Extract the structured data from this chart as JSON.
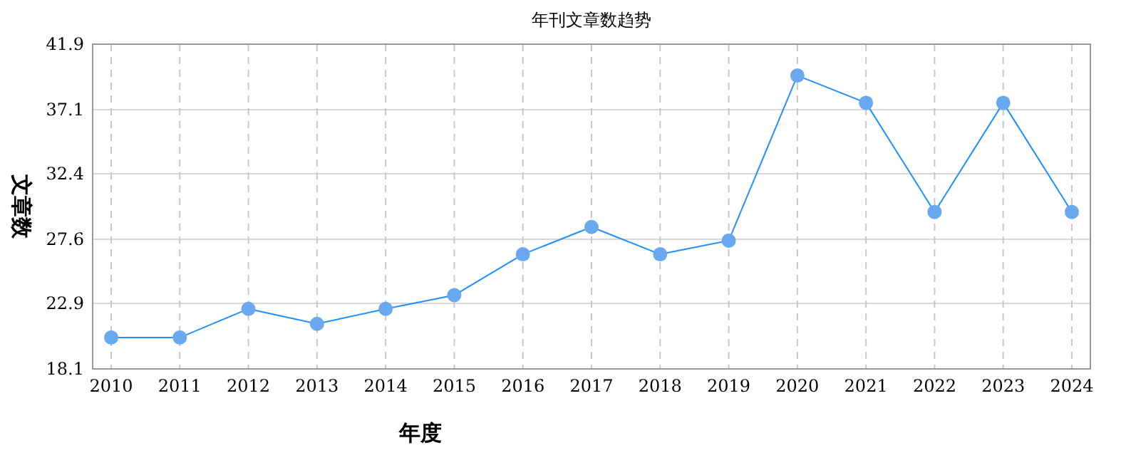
{
  "chart_data": {
    "type": "line",
    "title": "年刊文章数趋势",
    "xlabel": "年度",
    "ylabel": "文章数",
    "categories": [
      "2010",
      "2011",
      "2012",
      "2013",
      "2014",
      "2015",
      "2016",
      "2017",
      "2018",
      "2019",
      "2020",
      "2021",
      "2022",
      "2023",
      "2024"
    ],
    "series": [
      {
        "color": "#1e90ff",
        "values": [
          20.4,
          20.4,
          22.5,
          21.4,
          22.5,
          23.5,
          26.5,
          28.5,
          26.5,
          27.5,
          39.6,
          37.6,
          29.6,
          37.6,
          29.6
        ]
      }
    ],
    "ylim": [
      18.1,
      41.9
    ],
    "yticks": [
      18.1,
      22.9,
      27.6,
      32.4,
      37.1,
      41.9
    ],
    "grid": true,
    "marker": "circle"
  }
}
